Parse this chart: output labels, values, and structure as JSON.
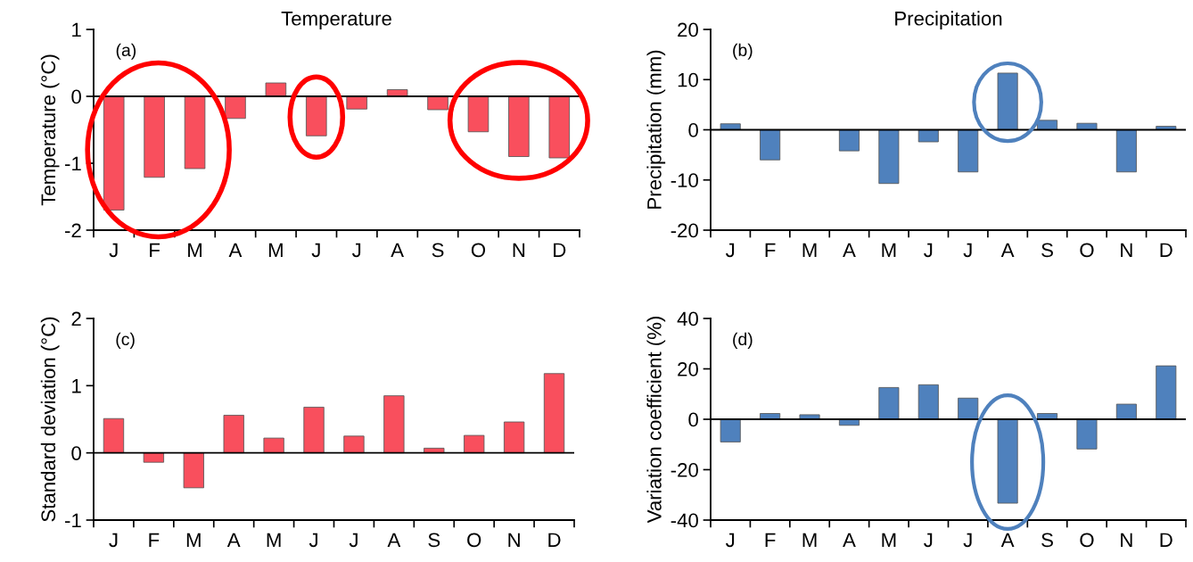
{
  "chart_data": [
    {
      "type": "bar",
      "title": "Temperature",
      "ylabel": "Temperature (°C)",
      "annotations": [
        "(a)"
      ],
      "categories": [
        "J",
        "F",
        "M",
        "A",
        "M",
        "J",
        "J",
        "A",
        "S",
        "O",
        "N",
        "D"
      ],
      "values": [
        -1.7,
        -1.21,
        -1.08,
        -0.33,
        0.2,
        -0.59,
        -0.19,
        0.1,
        -0.2,
        -0.53,
        -0.9,
        -0.92
      ],
      "color": "#f94f5d",
      "ylim": [
        -2,
        1
      ],
      "yticks": [
        -2,
        -1,
        0,
        1
      ],
      "ref_lines": [
        {
          "axis": "y",
          "value": 0
        }
      ],
      "grid": false,
      "legend": false
    },
    {
      "type": "bar",
      "title": "Precipitation",
      "ylabel": "Precipitation (mm)",
      "annotations": [
        "(b)"
      ],
      "categories": [
        "J",
        "F",
        "M",
        "A",
        "M",
        "J",
        "J",
        "A",
        "S",
        "O",
        "N",
        "D"
      ],
      "values": [
        1.2,
        -6.0,
        null,
        -4.2,
        -10.7,
        -2.4,
        -8.4,
        11.3,
        1.9,
        1.3,
        -8.4,
        0.7
      ],
      "color": "#4f81bd",
      "ylim": [
        -20,
        20
      ],
      "yticks": [
        -20,
        -10,
        0,
        10,
        20
      ],
      "ref_lines": [
        {
          "axis": "y",
          "value": 0
        }
      ],
      "grid": false,
      "legend": false
    },
    {
      "type": "bar",
      "ylabel": "Standard deviation (°C)",
      "annotations": [
        "(c)"
      ],
      "categories": [
        "J",
        "F",
        "M",
        "A",
        "M",
        "J",
        "J",
        "A",
        "S",
        "O",
        "N",
        "D"
      ],
      "values": [
        0.51,
        -0.14,
        -0.52,
        0.56,
        0.22,
        0.68,
        0.25,
        0.85,
        0.07,
        0.26,
        0.46,
        1.18
      ],
      "color": "#f94f5d",
      "ylim": [
        -1,
        2
      ],
      "yticks": [
        -1,
        0,
        1,
        2
      ],
      "ref_lines": [
        {
          "axis": "y",
          "value": 0
        }
      ],
      "grid": false,
      "legend": false
    },
    {
      "type": "bar",
      "ylabel": "Variation coefficient (%)",
      "annotations": [
        "(d)"
      ],
      "categories": [
        "J",
        "F",
        "M",
        "A",
        "M",
        "J",
        "J",
        "A",
        "S",
        "O",
        "N",
        "D"
      ],
      "values": [
        -9,
        2.3,
        1.8,
        -2.4,
        12.6,
        13.7,
        8.4,
        -33.3,
        2.3,
        -11.8,
        6,
        21.2
      ],
      "color": "#4f81bd",
      "ylim": [
        -40,
        40
      ],
      "yticks": [
        -40,
        -20,
        0,
        20,
        40
      ],
      "ref_lines": [
        {
          "axis": "y",
          "value": 0
        }
      ],
      "grid": false,
      "legend": false
    }
  ]
}
